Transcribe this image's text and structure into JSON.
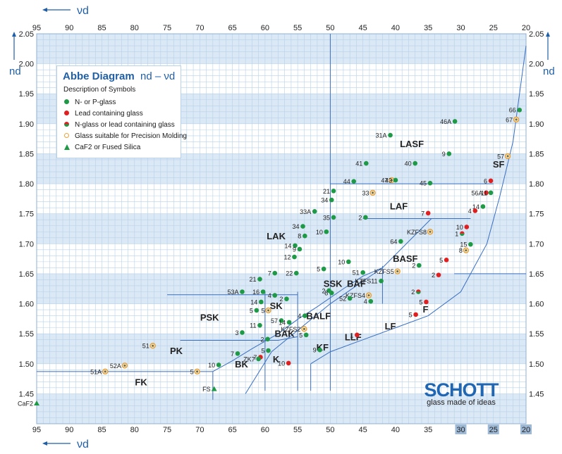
{
  "chart_data": {
    "type": "scatter",
    "title": "Abbe Diagram",
    "title_formula": "nd – νd",
    "xlabel": "νd",
    "ylabel": "nd",
    "xlim": [
      95,
      20
    ],
    "ylim": [
      1.4,
      2.05
    ],
    "x_reversed": true,
    "x_ticks": [
      95,
      90,
      85,
      80,
      75,
      70,
      65,
      60,
      55,
      50,
      45,
      40,
      35,
      30,
      25,
      20
    ],
    "x_ticks_bottom": [
      "95",
      "90",
      "85",
      "80",
      "75",
      "70",
      "65",
      "60",
      "55",
      "50",
      "45",
      "40",
      "35",
      "30",
      "25",
      "20"
    ],
    "y_ticks": [
      "1.45",
      "1.50",
      "1.55",
      "1.60",
      "1.65",
      "1.70",
      "1.75",
      "1.80",
      "1.85",
      "1.90",
      "1.95",
      "2.00",
      "2.05"
    ],
    "grid": true,
    "legend": {
      "position": "top-left",
      "description": "Description of Symbols",
      "entries": [
        {
          "label": "N- or P-glass",
          "symbol": "green-dot"
        },
        {
          "label": "Lead containing glass",
          "symbol": "red-dot"
        },
        {
          "label": "N-glass or lead containing glass",
          "symbol": "split-dot"
        },
        {
          "label": "Glass suitable for Precision Molding",
          "symbol": "orange-ring"
        },
        {
          "label": "CaF2 or Fused Silica",
          "symbol": "green-triangle"
        }
      ]
    },
    "colors": {
      "n_glass": "#1e9a47",
      "lead_glass": "#e02020",
      "molding_ring": "#e8a33a",
      "grid_minor": "#b8d1e8",
      "band": "#dbe8f5",
      "region_line": "#3b6fc0"
    },
    "families": [
      {
        "name": "LASF",
        "x": 37.5,
        "y": 1.867
      },
      {
        "name": "SF",
        "x": 24.2,
        "y": 1.833
      },
      {
        "name": "LAF",
        "x": 39.5,
        "y": 1.763
      },
      {
        "name": "LAK",
        "x": 58.3,
        "y": 1.713
      },
      {
        "name": "BASF",
        "x": 38.5,
        "y": 1.676
      },
      {
        "name": "SSK",
        "x": 49.6,
        "y": 1.634
      },
      {
        "name": "BAF",
        "x": 46.0,
        "y": 1.634
      },
      {
        "name": "SK",
        "x": 58.3,
        "y": 1.597
      },
      {
        "name": "BALF",
        "x": 51.8,
        "y": 1.58
      },
      {
        "name": "PSK",
        "x": 68.5,
        "y": 1.578
      },
      {
        "name": "F",
        "x": 35.4,
        "y": 1.591
      },
      {
        "name": "LF",
        "x": 40.8,
        "y": 1.563
      },
      {
        "name": "BAK",
        "x": 57.0,
        "y": 1.551
      },
      {
        "name": "LLF",
        "x": 46.5,
        "y": 1.545
      },
      {
        "name": "KF",
        "x": 51.2,
        "y": 1.528
      },
      {
        "name": "PK",
        "x": 73.6,
        "y": 1.522
      },
      {
        "name": "K",
        "x": 58.3,
        "y": 1.508
      },
      {
        "name": "BK",
        "x": 63.6,
        "y": 1.5
      },
      {
        "name": "FK",
        "x": 79.0,
        "y": 1.47
      }
    ],
    "points": [
      {
        "label": "66",
        "x": 21.0,
        "y": 1.923,
        "kind": "n"
      },
      {
        "label": "67",
        "x": 21.5,
        "y": 1.907,
        "kind": "ring"
      },
      {
        "label": "46A",
        "x": 30.9,
        "y": 1.904,
        "kind": "n"
      },
      {
        "label": "31A",
        "x": 40.8,
        "y": 1.881,
        "kind": "n"
      },
      {
        "label": "9",
        "x": 31.8,
        "y": 1.85,
        "kind": "n"
      },
      {
        "label": "57",
        "x": 22.8,
        "y": 1.846,
        "kind": "ring"
      },
      {
        "label": "41",
        "x": 44.5,
        "y": 1.834,
        "kind": "n"
      },
      {
        "label": "40",
        "x": 37.0,
        "y": 1.834,
        "kind": "n"
      },
      {
        "label": "44",
        "x": 46.4,
        "y": 1.804,
        "kind": "n"
      },
      {
        "label": "47",
        "x": 40.6,
        "y": 1.806,
        "kind": "ring"
      },
      {
        "label": "43",
        "x": 40.0,
        "y": 1.806,
        "kind": "n"
      },
      {
        "label": "45",
        "x": 34.7,
        "y": 1.801,
        "kind": "n"
      },
      {
        "label": "6",
        "x": 25.4,
        "y": 1.805,
        "kind": "lead"
      },
      {
        "label": "21",
        "x": 49.5,
        "y": 1.788,
        "kind": "n"
      },
      {
        "label": "33",
        "x": 43.5,
        "y": 1.785,
        "kind": "ring"
      },
      {
        "label": "56A",
        "x": 26.1,
        "y": 1.785,
        "kind": "lead"
      },
      {
        "label": "11",
        "x": 25.4,
        "y": 1.785,
        "kind": "n"
      },
      {
        "label": "34",
        "x": 49.8,
        "y": 1.773,
        "kind": "n"
      },
      {
        "label": "14",
        "x": 26.6,
        "y": 1.762,
        "kind": "n"
      },
      {
        "label": "4",
        "x": 27.8,
        "y": 1.755,
        "kind": "lead"
      },
      {
        "label": "33A",
        "x": 52.4,
        "y": 1.754,
        "kind": "n"
      },
      {
        "label": "7",
        "x": 35.0,
        "y": 1.751,
        "kind": "lead"
      },
      {
        "label": "35",
        "x": 49.5,
        "y": 1.744,
        "kind": "n"
      },
      {
        "label": "2",
        "x": 44.6,
        "y": 1.744,
        "kind": "n"
      },
      {
        "label": "34",
        "x": 54.2,
        "y": 1.729,
        "kind": "n"
      },
      {
        "label": "10",
        "x": 29.1,
        "y": 1.728,
        "kind": "lead"
      },
      {
        "label": "KZFS8",
        "x": 34.7,
        "y": 1.72,
        "kind": "ring"
      },
      {
        "label": "10",
        "x": 50.6,
        "y": 1.72,
        "kind": "n"
      },
      {
        "label": "1",
        "x": 29.8,
        "y": 1.717,
        "kind": "split"
      },
      {
        "label": "8",
        "x": 53.9,
        "y": 1.713,
        "kind": "n"
      },
      {
        "label": "64",
        "x": 39.2,
        "y": 1.704,
        "kind": "n"
      },
      {
        "label": "15",
        "x": 28.5,
        "y": 1.699,
        "kind": "n"
      },
      {
        "label": "14",
        "x": 55.4,
        "y": 1.697,
        "kind": "n"
      },
      {
        "label": "9",
        "x": 54.7,
        "y": 1.691,
        "kind": "n"
      },
      {
        "label": "8",
        "x": 29.2,
        "y": 1.689,
        "kind": "ring"
      },
      {
        "label": "12",
        "x": 55.5,
        "y": 1.678,
        "kind": "n"
      },
      {
        "label": "5",
        "x": 32.2,
        "y": 1.673,
        "kind": "lead"
      },
      {
        "label": "10",
        "x": 47.2,
        "y": 1.67,
        "kind": "n"
      },
      {
        "label": "2",
        "x": 36.4,
        "y": 1.664,
        "kind": "n"
      },
      {
        "label": "5",
        "x": 51.0,
        "y": 1.658,
        "kind": "n"
      },
      {
        "label": "7",
        "x": 58.5,
        "y": 1.651,
        "kind": "n"
      },
      {
        "label": "22",
        "x": 55.2,
        "y": 1.651,
        "kind": "n"
      },
      {
        "label": "51",
        "x": 45.0,
        "y": 1.652,
        "kind": "n"
      },
      {
        "label": "KZFS5",
        "x": 39.7,
        "y": 1.654,
        "kind": "ring"
      },
      {
        "label": "2",
        "x": 33.4,
        "y": 1.648,
        "kind": "lead"
      },
      {
        "label": "21",
        "x": 60.8,
        "y": 1.641,
        "kind": "n"
      },
      {
        "label": "KZFS11",
        "x": 42.2,
        "y": 1.638,
        "kind": "n"
      },
      {
        "label": "16",
        "x": 60.3,
        "y": 1.62,
        "kind": "n"
      },
      {
        "label": "2",
        "x": 50.2,
        "y": 1.622,
        "kind": "n"
      },
      {
        "label": "53A",
        "x": 63.5,
        "y": 1.62,
        "kind": "n"
      },
      {
        "label": "4",
        "x": 58.5,
        "y": 1.614,
        "kind": "n"
      },
      {
        "label": "8",
        "x": 49.8,
        "y": 1.618,
        "kind": "n"
      },
      {
        "label": "KZFS4",
        "x": 44.1,
        "y": 1.614,
        "kind": "ring"
      },
      {
        "label": "2",
        "x": 36.5,
        "y": 1.62,
        "kind": "split"
      },
      {
        "label": "14",
        "x": 60.6,
        "y": 1.603,
        "kind": "n"
      },
      {
        "label": "2",
        "x": 56.7,
        "y": 1.608,
        "kind": "n"
      },
      {
        "label": "52",
        "x": 47.0,
        "y": 1.609,
        "kind": "n"
      },
      {
        "label": "5",
        "x": 35.3,
        "y": 1.603,
        "kind": "lead"
      },
      {
        "label": "4",
        "x": 43.8,
        "y": 1.604,
        "kind": "n"
      },
      {
        "label": "5",
        "x": 61.3,
        "y": 1.589,
        "kind": "n"
      },
      {
        "label": "5",
        "x": 59.5,
        "y": 1.589,
        "kind": "ring"
      },
      {
        "label": "4",
        "x": 53.9,
        "y": 1.58,
        "kind": "n"
      },
      {
        "label": "5",
        "x": 36.9,
        "y": 1.582,
        "kind": "lead"
      },
      {
        "label": "57",
        "x": 57.5,
        "y": 1.572,
        "kind": "n"
      },
      {
        "label": "14",
        "x": 56.3,
        "y": 1.569,
        "kind": "n"
      },
      {
        "label": "11",
        "x": 60.8,
        "y": 1.564,
        "kind": "n"
      },
      {
        "label": "KZFS2",
        "x": 54.0,
        "y": 1.558,
        "kind": "ring"
      },
      {
        "label": "3",
        "x": 63.5,
        "y": 1.552,
        "kind": "n"
      },
      {
        "label": "5",
        "x": 53.7,
        "y": 1.548,
        "kind": "n"
      },
      {
        "label": "1",
        "x": 45.9,
        "y": 1.548,
        "kind": "lead"
      },
      {
        "label": "2",
        "x": 59.6,
        "y": 1.541,
        "kind": "n"
      },
      {
        "label": "51",
        "x": 77.2,
        "y": 1.53,
        "kind": "ring"
      },
      {
        "label": "5",
        "x": 59.5,
        "y": 1.522,
        "kind": "n"
      },
      {
        "label": "9",
        "x": 51.6,
        "y": 1.523,
        "kind": "n"
      },
      {
        "label": "7",
        "x": 64.2,
        "y": 1.517,
        "kind": "n"
      },
      {
        "label": "7",
        "x": 60.7,
        "y": 1.511,
        "kind": "lead"
      },
      {
        "label": "ZK7",
        "x": 61.0,
        "y": 1.508,
        "kind": "n"
      },
      {
        "label": "10",
        "x": 67.1,
        "y": 1.498,
        "kind": "n"
      },
      {
        "label": "10",
        "x": 56.4,
        "y": 1.501,
        "kind": "lead"
      },
      {
        "label": "52A",
        "x": 81.5,
        "y": 1.497,
        "kind": "ring"
      },
      {
        "label": "51A",
        "x": 84.5,
        "y": 1.487,
        "kind": "ring"
      },
      {
        "label": "5",
        "x": 70.4,
        "y": 1.487,
        "kind": "ring"
      },
      {
        "label": "FS",
        "x": 67.8,
        "y": 1.458,
        "kind": "tri"
      },
      {
        "label": "CaF2",
        "x": 95.0,
        "y": 1.434,
        "kind": "tri"
      }
    ]
  },
  "brand": {
    "logo": "SCHOTT",
    "tagline": "glass made of ideas"
  }
}
